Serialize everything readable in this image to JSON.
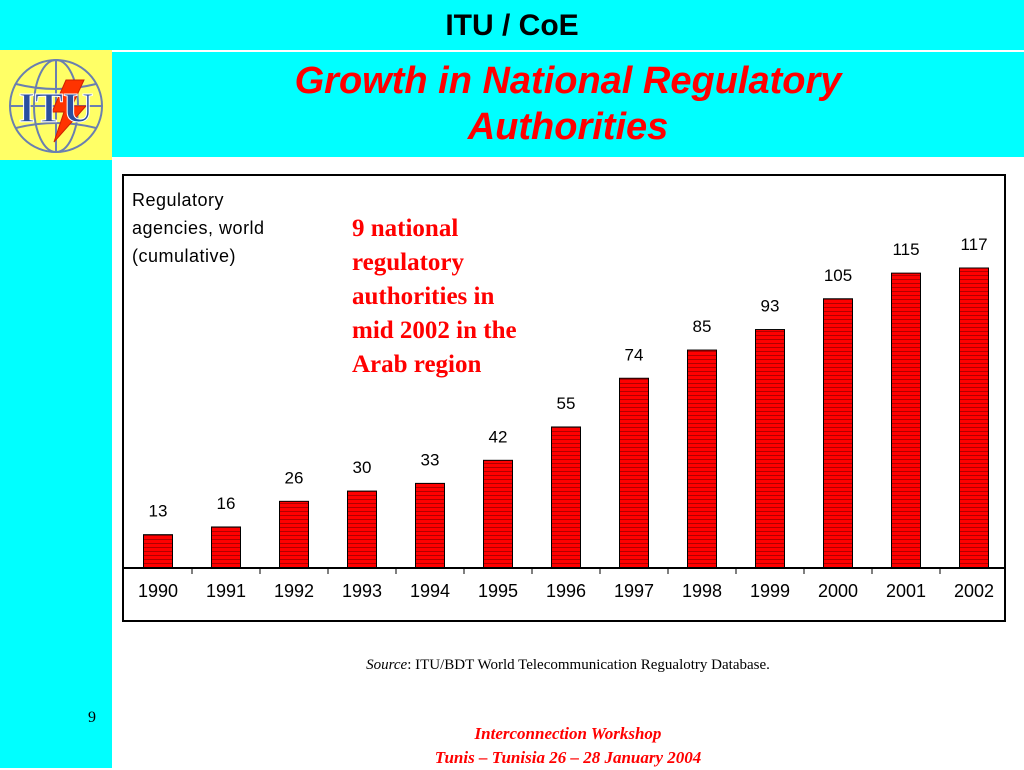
{
  "header": {
    "top_title": "ITU / CoE",
    "slide_title_line1": "Growth in National Regulatory",
    "slide_title_line2": "Authorities"
  },
  "logo": {
    "text": "ITU"
  },
  "chart_note": {
    "lines": [
      "9 national",
      "regulatory",
      "authorities in",
      "mid 2002 in the",
      "Arab region"
    ]
  },
  "source": {
    "label": "Source",
    "text": ": ITU/BDT World Telecommunication Regualotry Database."
  },
  "page_number": "9",
  "footer": {
    "line1": "Interconnection Workshop",
    "line2": "Tunis – Tunisia 26 – 28 January 2004"
  },
  "colors": {
    "background_accent": "#00ffff",
    "logo_background": "#ffff66",
    "title_red": "#ff0000",
    "bar_red": "#ff0000"
  },
  "chart_data": {
    "type": "bar",
    "title_lines": [
      "Regulatory",
      "agencies, world",
      "(cumulative)"
    ],
    "categories": [
      "1990",
      "1991",
      "1992",
      "1993",
      "1994",
      "1995",
      "1996",
      "1997",
      "1998",
      "1999",
      "2000",
      "2001",
      "2002"
    ],
    "values": [
      13,
      16,
      26,
      30,
      33,
      42,
      55,
      74,
      85,
      93,
      105,
      115,
      117
    ],
    "ylim": [
      0,
      117
    ],
    "grid": false,
    "legend": "none",
    "data_labels": true
  }
}
